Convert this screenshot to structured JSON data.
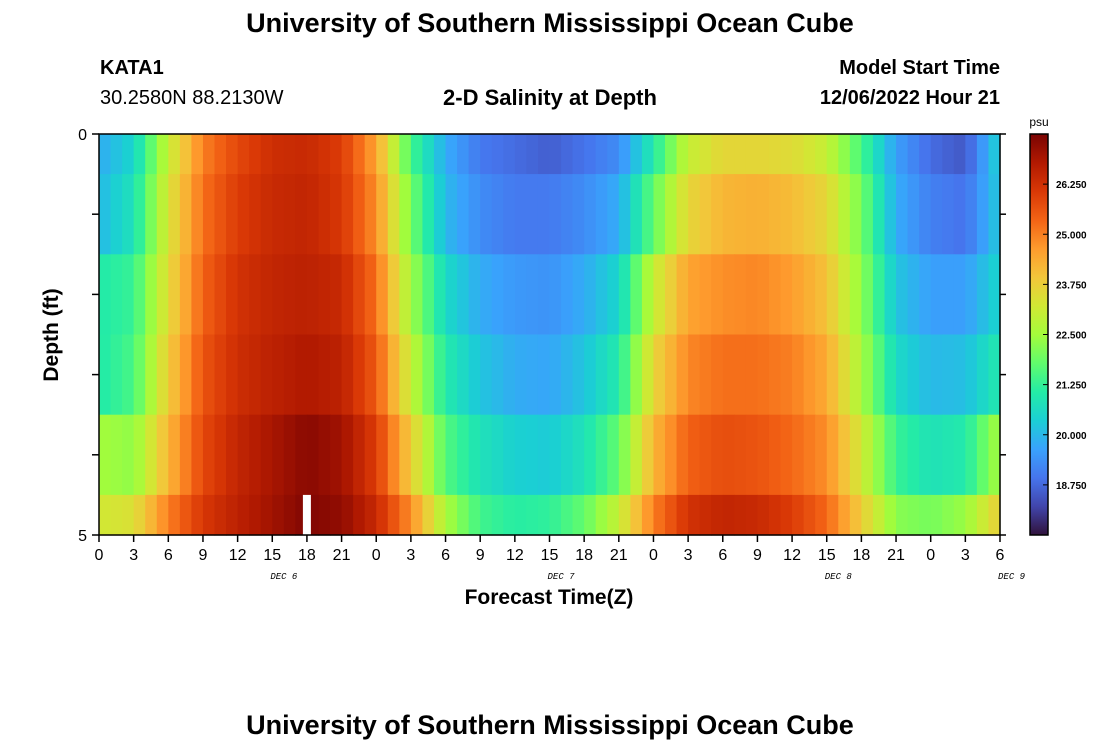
{
  "page": {
    "title": "University of Southern Mississippi Ocean Cube",
    "footer_title": "University of Southern Mississippi Ocean Cube"
  },
  "station": {
    "id": "KATA1",
    "coords": "30.2580N  88.2130W"
  },
  "plot_title": "2-D Salinity at Depth",
  "model_start": {
    "label": "Model Start Time",
    "value": "12/06/2022 Hour 21"
  },
  "chart_data": {
    "type": "heatmap",
    "title": "2-D Salinity at Depth",
    "xlabel": "Forecast Time(Z)",
    "ylabel": "Depth (ft)",
    "x_tick_labels": [
      "0",
      "3",
      "6",
      "9",
      "12",
      "15",
      "18",
      "21",
      "0",
      "3",
      "6",
      "9",
      "12",
      "15",
      "18",
      "21",
      "0",
      "3",
      "6",
      "9",
      "12",
      "15",
      "18",
      "21",
      "0",
      "3",
      "6"
    ],
    "x_range_hours": [
      0,
      78
    ],
    "day_labels": [
      {
        "label": "DEC 6",
        "hour": 16
      },
      {
        "label": "DEC 7",
        "hour": 40
      },
      {
        "label": "DEC 8",
        "hour": 64
      },
      {
        "label": "DEC 9",
        "hour": 79
      }
    ],
    "y_tick_labels": [
      "0",
      "5"
    ],
    "ylim": [
      0,
      5
    ],
    "depth_layers": 5,
    "colorbar": {
      "unit": "psu",
      "min": 17.5,
      "max": 27.5,
      "ticks": [
        "26.250",
        "25.000",
        "23.750",
        "22.500",
        "21.250",
        "20.000",
        "18.750"
      ],
      "colors": [
        "#30123b",
        "#4145ab",
        "#4675ed",
        "#39a2fc",
        "#1bcfd4",
        "#24eca6",
        "#61fc6c",
        "#a4fc3b",
        "#d1e834",
        "#f3c63a",
        "#fe9b2d",
        "#f36315",
        "#d93806",
        "#b11901",
        "#7a0403"
      ]
    },
    "current_time_hour": 18,
    "series": [
      {
        "name": "depth 0-0.5 ft",
        "hours": [
          0,
          3,
          6,
          9,
          12,
          15,
          18,
          21,
          24,
          27,
          30,
          33,
          36,
          39,
          42,
          45,
          48,
          51,
          54,
          57,
          60,
          63,
          66,
          69,
          72,
          75,
          78
        ],
        "values": [
          19.8,
          20.5,
          23.0,
          25.0,
          25.8,
          26.3,
          26.4,
          26.0,
          24.5,
          21.5,
          19.8,
          19.0,
          18.8,
          18.6,
          18.9,
          19.3,
          21.0,
          23.0,
          23.6,
          23.6,
          23.5,
          23.0,
          21.5,
          19.6,
          18.8,
          18.5,
          20.5
        ]
      },
      {
        "name": "depth 0.5-1.5 ft",
        "hours": [
          0,
          3,
          6,
          9,
          12,
          15,
          18,
          21,
          24,
          27,
          30,
          33,
          36,
          39,
          42,
          45,
          48,
          51,
          54,
          57,
          60,
          63,
          66,
          69,
          72,
          75,
          78
        ],
        "values": [
          20.0,
          20.8,
          23.3,
          25.2,
          26.0,
          26.4,
          26.5,
          26.1,
          24.8,
          22.0,
          20.0,
          19.3,
          19.0,
          19.0,
          19.3,
          19.8,
          21.8,
          23.6,
          24.2,
          24.3,
          24.1,
          23.6,
          22.0,
          19.8,
          19.1,
          18.9,
          20.3
        ]
      },
      {
        "name": "depth 1.5-2.5 ft",
        "hours": [
          0,
          3,
          6,
          9,
          12,
          15,
          18,
          21,
          24,
          27,
          30,
          33,
          36,
          39,
          42,
          45,
          48,
          51,
          54,
          57,
          60,
          63,
          66,
          69,
          72,
          75,
          78
        ],
        "values": [
          21.0,
          21.3,
          23.5,
          25.4,
          26.2,
          26.5,
          26.6,
          26.4,
          25.2,
          22.5,
          20.6,
          19.8,
          19.5,
          19.4,
          19.8,
          20.5,
          23.0,
          24.5,
          24.8,
          24.9,
          24.6,
          24.0,
          22.3,
          20.2,
          19.6,
          19.6,
          20.5
        ]
      },
      {
        "name": "depth 2.5-3.5 ft",
        "hours": [
          0,
          3,
          6,
          9,
          12,
          15,
          18,
          21,
          24,
          27,
          30,
          33,
          36,
          39,
          42,
          45,
          48,
          51,
          54,
          57,
          60,
          63,
          66,
          69,
          72,
          75,
          78
        ],
        "values": [
          21.0,
          21.5,
          23.8,
          25.6,
          26.3,
          26.6,
          26.8,
          26.6,
          25.5,
          23.0,
          21.0,
          20.2,
          19.8,
          19.7,
          20.2,
          21.0,
          23.6,
          24.9,
          25.2,
          25.2,
          25.0,
          24.4,
          22.6,
          20.6,
          20.0,
          20.1,
          21.0
        ]
      },
      {
        "name": "depth 3.5-4.5 ft",
        "hours": [
          0,
          3,
          6,
          9,
          12,
          15,
          18,
          21,
          24,
          27,
          30,
          33,
          36,
          39,
          42,
          45,
          48,
          51,
          54,
          57,
          60,
          63,
          66,
          69,
          72,
          75,
          78
        ],
        "values": [
          22.5,
          22.3,
          24.2,
          25.8,
          26.5,
          26.9,
          27.3,
          27.0,
          26.0,
          23.8,
          21.6,
          20.8,
          20.4,
          20.3,
          20.8,
          21.8,
          24.2,
          25.4,
          25.7,
          25.6,
          25.3,
          24.8,
          23.2,
          21.3,
          20.8,
          21.0,
          22.6
        ]
      },
      {
        "name": "depth 4.5-5 ft",
        "hours": [
          0,
          3,
          6,
          9,
          12,
          15,
          18,
          21,
          24,
          27,
          30,
          33,
          36,
          39,
          42,
          45,
          48,
          51,
          54,
          57,
          60,
          63,
          66,
          69,
          72,
          75,
          78
        ],
        "values": [
          23.2,
          23.4,
          25.0,
          26.1,
          26.6,
          27.0,
          27.4,
          27.2,
          26.4,
          24.8,
          22.6,
          21.4,
          21.1,
          21.2,
          21.8,
          23.0,
          25.0,
          26.2,
          26.5,
          26.4,
          26.0,
          25.3,
          23.8,
          22.2,
          22.0,
          22.4,
          23.8
        ]
      }
    ]
  }
}
